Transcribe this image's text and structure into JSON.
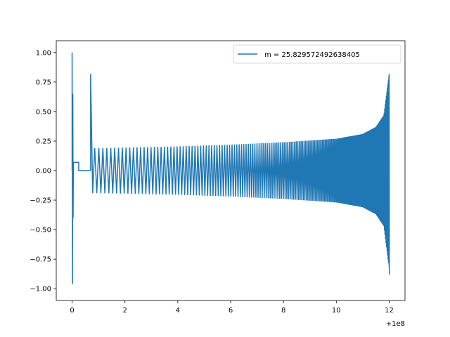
{
  "chart_data": {
    "type": "line",
    "title": "",
    "xlabel": "",
    "ylabel": "",
    "x_offset_label": "+1e8",
    "xlim": [
      -0.6,
      12.6
    ],
    "ylim": [
      -1.1,
      1.1
    ],
    "xticks": [
      0,
      2,
      4,
      6,
      8,
      10,
      12
    ],
    "yticks": [
      -1.0,
      -0.75,
      -0.5,
      -0.25,
      0.0,
      0.25,
      0.5,
      0.75,
      1.0
    ],
    "xtick_labels": [
      "0",
      "2",
      "4",
      "6",
      "8",
      "10",
      "12"
    ],
    "ytick_labels": [
      "−1.00",
      "−0.75",
      "−0.50",
      "−0.25",
      "0.00",
      "0.25",
      "0.50",
      "0.75",
      "1.00"
    ],
    "grid": false,
    "legend_position": "upper right",
    "series": [
      {
        "name": "m = 25.829572492638405",
        "color": "#1f77b4",
        "segments": [
          {
            "kind": "spike",
            "x": 0.0,
            "y_max": 1.0,
            "y_min": -0.96
          },
          {
            "kind": "flat",
            "x_start": 0.05,
            "x_end": 0.25,
            "y": 0.07
          },
          {
            "kind": "flat",
            "x_start": 0.25,
            "x_end": 0.7,
            "y": 0.0
          },
          {
            "kind": "oscillation",
            "x_start": 0.7,
            "x_end": 12.0,
            "envelope_x": [
              0.7,
              2.0,
              4.0,
              6.0,
              8.0,
              10.0,
              11.0,
              11.5,
              11.8,
              12.0
            ],
            "envelope_amp": [
              0.19,
              0.195,
              0.205,
              0.22,
              0.24,
              0.27,
              0.31,
              0.37,
              0.47,
              0.82
            ]
          }
        ]
      }
    ]
  }
}
